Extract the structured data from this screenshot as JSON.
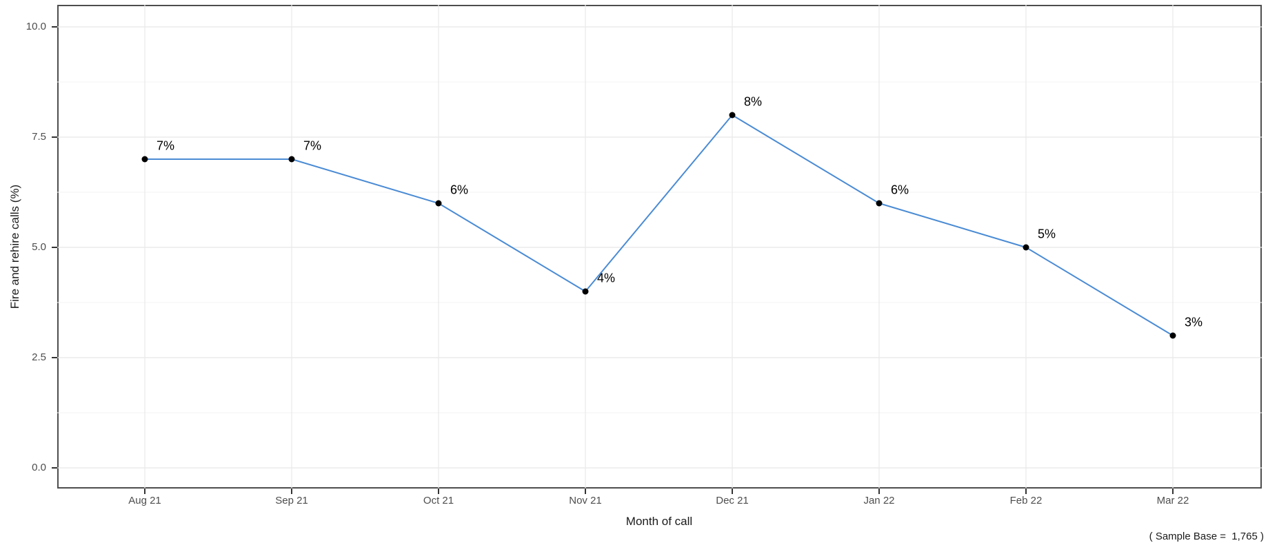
{
  "chart_data": {
    "type": "line",
    "categories": [
      "Aug 21",
      "Sep 21",
      "Oct 21",
      "Nov 21",
      "Dec 21",
      "Jan 22",
      "Feb 22",
      "Mar 22"
    ],
    "series": [
      {
        "name": "Fire and rehire calls",
        "values": [
          7,
          7,
          6,
          4,
          8,
          6,
          5,
          3
        ],
        "point_labels": [
          "7%",
          "7%",
          "6%",
          "4%",
          "8%",
          "6%",
          "5%",
          "3%"
        ]
      }
    ],
    "title": "",
    "xlabel": "Month of call",
    "ylabel": "Fire and rehire calls (%)",
    "ylim": [
      0,
      10
    ],
    "yticks": [
      0.0,
      2.5,
      5.0,
      7.5,
      10.0
    ],
    "ytick_labels": [
      "0.0",
      "2.5",
      "5.0",
      "7.5",
      "10.0"
    ],
    "yticks_minor": [
      1.25,
      3.75,
      6.25,
      8.75
    ],
    "grid": "horizontal major+minor, vertical major at each category",
    "legend": "none",
    "colors": {
      "line": "#4a8bd4",
      "point": "#000000",
      "grid_major": "#e8e8e8",
      "grid_minor": "#f3f3f3",
      "panel_border": "#4d4d4d",
      "tick_label": "#4d4d4d",
      "axis_title": "#1a1a1a"
    }
  },
  "caption": "( Sample Base =  1,765 )"
}
